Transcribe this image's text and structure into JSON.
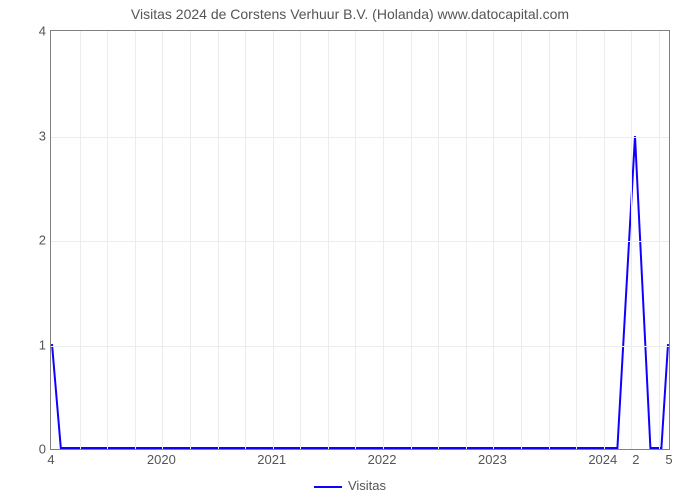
{
  "title": "Visitas 2024 de Corstens Verhuur B.V. (Holanda) www.datocapital.com",
  "chart": {
    "type": "line",
    "background_color": "#ffffff",
    "grid_color": "#ececec",
    "axis_color": "#808080",
    "line_color": "#1200ff",
    "line_width": 2,
    "title_fontsize": 14,
    "tick_fontsize": 13,
    "text_color": "#555555",
    "xlim": [
      2019.0,
      2024.6
    ],
    "ylim": [
      0,
      4
    ],
    "y_ticks": [
      0,
      1,
      2,
      3,
      4
    ],
    "x_major_ticks": [
      2020,
      2021,
      2022,
      2023,
      2024
    ],
    "x_extra_labels": [
      {
        "x": 2019.0,
        "label": "4"
      },
      {
        "x": 2024.3,
        "label": "2"
      },
      {
        "x": 2024.6,
        "label": "5"
      }
    ],
    "minor_grid_divisions": 4,
    "series": {
      "name": "Visitas",
      "points": [
        [
          2019.0,
          1.0
        ],
        [
          2019.08,
          0.0
        ],
        [
          2024.14,
          0.0
        ],
        [
          2024.3,
          3.0
        ],
        [
          2024.44,
          0.0
        ],
        [
          2024.54,
          0.0
        ],
        [
          2024.6,
          1.0
        ]
      ]
    },
    "legend_label": "Visitas"
  }
}
